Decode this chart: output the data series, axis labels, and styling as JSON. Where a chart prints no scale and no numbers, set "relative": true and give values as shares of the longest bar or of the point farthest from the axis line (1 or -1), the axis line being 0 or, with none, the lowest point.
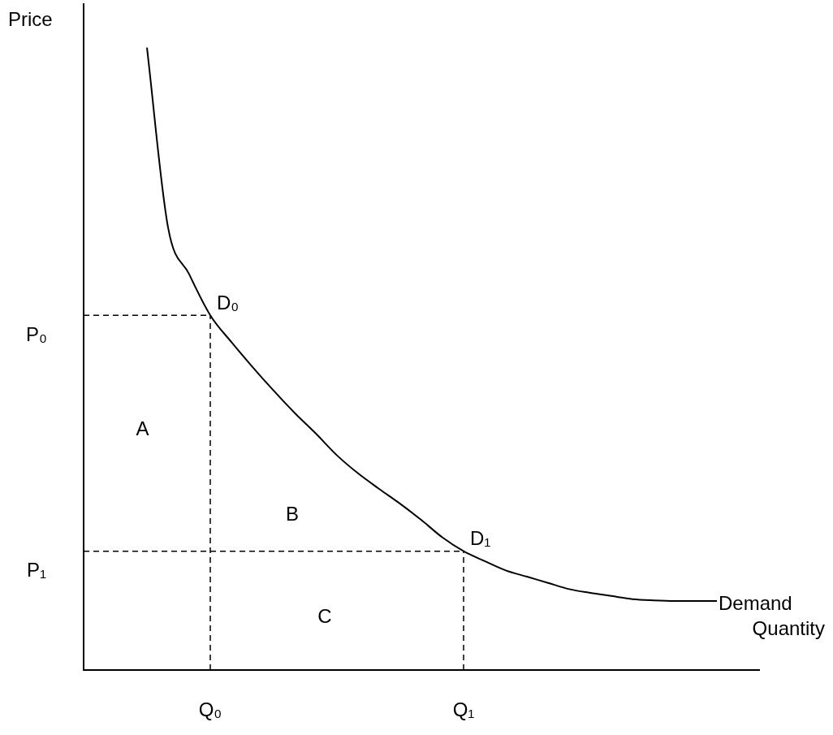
{
  "chart_data": {
    "type": "line",
    "xlabel": "Quantity",
    "ylabel": "Price",
    "relative": true,
    "legend": false,
    "grid": false,
    "marker": "none",
    "categories": [
      null,
      null,
      null,
      null,
      null,
      null,
      "Q₀",
      null,
      null,
      null,
      null,
      null,
      null,
      null,
      null,
      null,
      null,
      null,
      "Q₁",
      null,
      null,
      null,
      null,
      null,
      null,
      null,
      null,
      null,
      null,
      null,
      null,
      null,
      null
    ],
    "series": [
      {
        "name": "Demand",
        "color": "#000000",
        "values": [
          null,
          null,
          null,
          1,
          0.711,
          0.636,
          0.57,
          0.527,
          0.487,
          0.449,
          0.413,
          0.38,
          0.345,
          0.316,
          0.291,
          0.267,
          0.241,
          0.213,
          0.191,
          0.175,
          0.16,
          0.15,
          0.14,
          0.13,
          0.124,
          0.119,
          0.114,
          0.112,
          0.111,
          0.111,
          0.111,
          null,
          null
        ]
      }
    ],
    "ref_lines": [
      {
        "axis": "y",
        "value": 0.57,
        "label": "P₀",
        "line_style": "dashed"
      },
      {
        "axis": "y",
        "value": 0.191,
        "label": "P₁",
        "line_style": "dashed"
      },
      {
        "axis": "x",
        "value": "Q₀",
        "line_style": "dashed"
      },
      {
        "axis": "x",
        "value": "Q₁",
        "line_style": "dashed"
      }
    ],
    "annotations": [
      {
        "text": "D₀",
        "x": "Q₀",
        "y": 0.57
      },
      {
        "text": "D₁",
        "x": "Q₁",
        "y": 0.191
      },
      "A",
      "B",
      "C"
    ]
  }
}
